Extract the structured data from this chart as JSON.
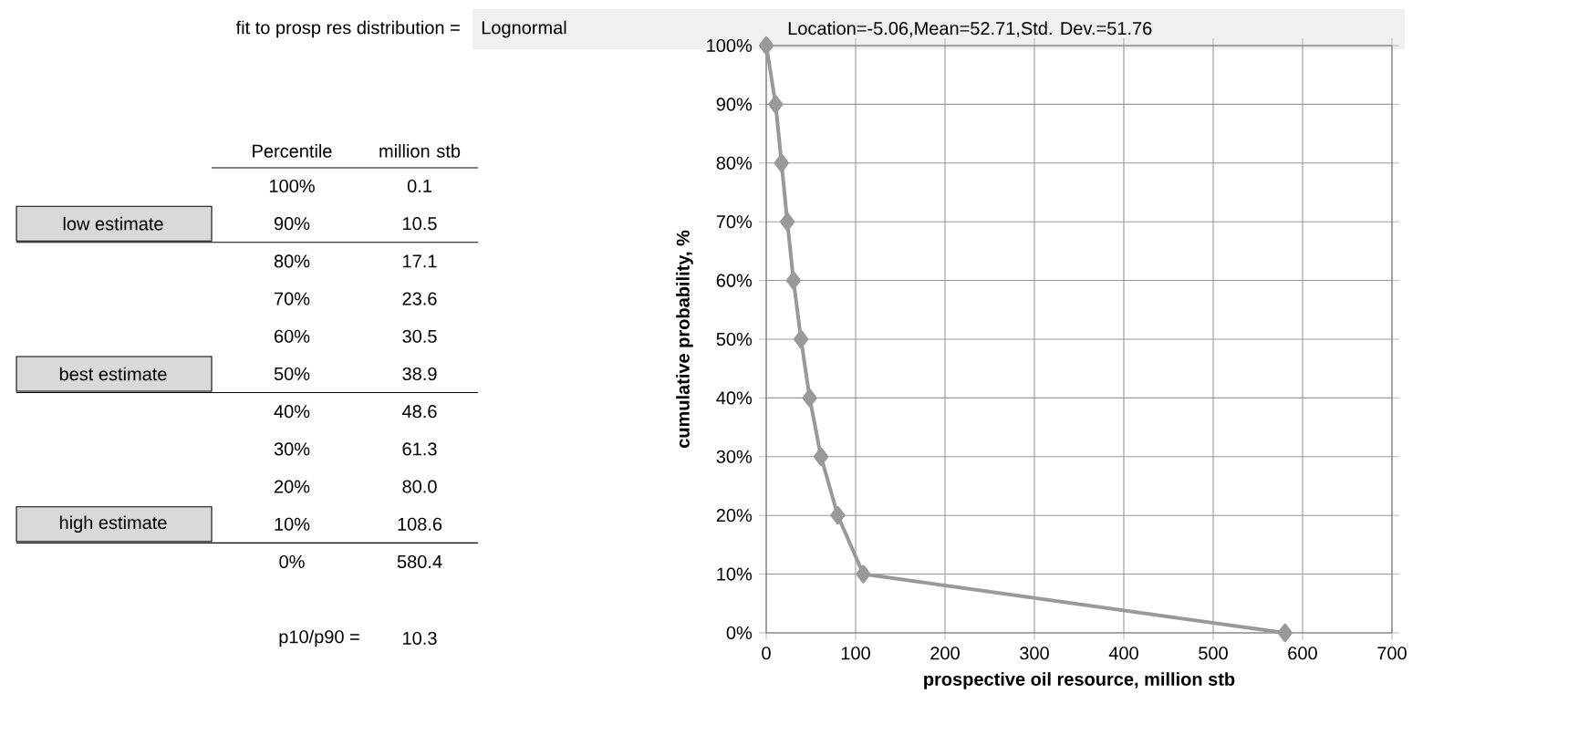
{
  "chart_data": {
    "type": "line",
    "title": "fit to prosp res distribution =",
    "subtitle": "Lognormal",
    "xlabel": "prospective oil resource, million stb",
    "ylabel": "cumulative probability, %",
    "x": [
      0.1,
      10.5,
      17.1,
      23.6,
      30.5,
      38.9,
      48.6,
      61.3,
      80.0,
      108.6,
      580.4
    ],
    "values": [
      100,
      90,
      80,
      70,
      60,
      50,
      40,
      30,
      20,
      10,
      0
    ],
    "color": "#999999",
    "marker": "diamond",
    "grid": true,
    "xlim": [
      0,
      700
    ],
    "xticks": [
      0,
      100,
      200,
      300,
      400,
      500,
      600,
      700
    ],
    "ylim": [
      0,
      100
    ],
    "yticks": [
      {
        "value": 0,
        "label": "0%"
      },
      {
        "value": 10,
        "label": "10%"
      },
      {
        "value": 20,
        "label": "20%"
      },
      {
        "value": 30,
        "label": "30%"
      },
      {
        "value": 40,
        "label": "40%"
      },
      {
        "value": 50,
        "label": "50%"
      },
      {
        "value": 60,
        "label": "60%"
      },
      {
        "value": 70,
        "label": "70%"
      },
      {
        "value": 80,
        "label": "80%"
      },
      {
        "value": 90,
        "label": "90%"
      },
      {
        "value": 100,
        "label": "100%"
      }
    ],
    "annotations": [
      "Location=-5.06,Mean=52.71,Std. Dev.=51.76",
      "Percentile",
      "million stb",
      "100%",
      "0.1",
      "90%",
      "10.5",
      "80%",
      "17.1",
      "70%",
      "23.6",
      "60%",
      "30.5",
      "50%",
      "38.9",
      "40%",
      "48.6",
      "30%",
      "61.3",
      "20%",
      "80.0",
      "10%",
      "108.6",
      "0%",
      "580.4",
      "low estimate",
      "best estimate",
      "high estimate",
      "p10/p90 =",
      "10.3"
    ]
  }
}
